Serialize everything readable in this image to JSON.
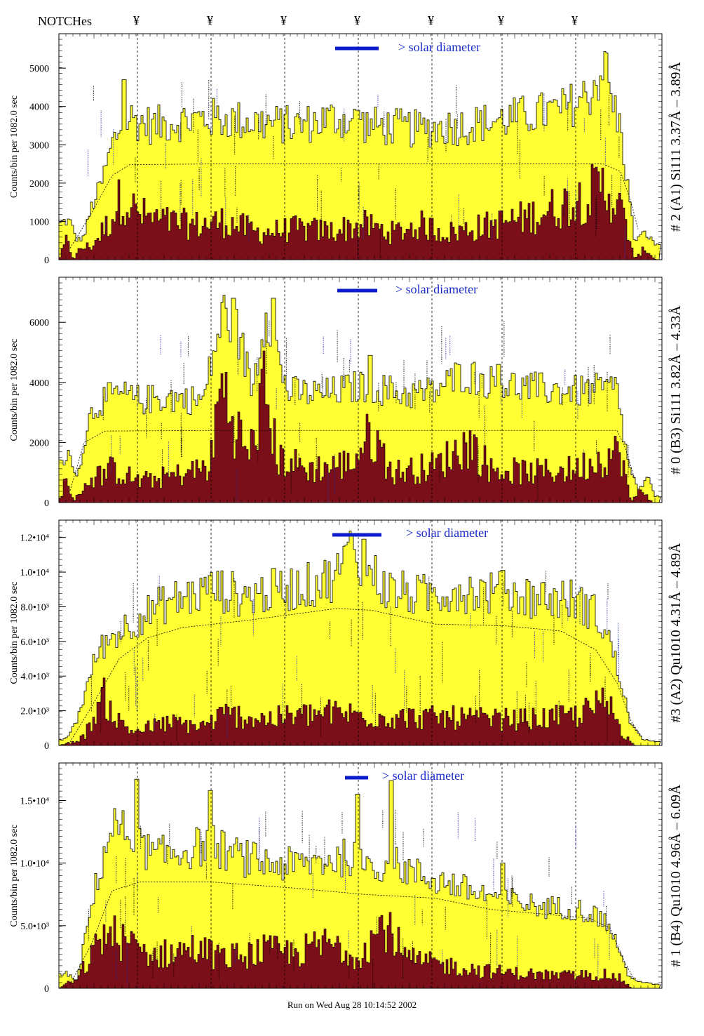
{
  "header": {
    "notch_label": "NOTCHes",
    "notch_symbol": "¥",
    "notch_positions_x": [
      196,
      301,
      406,
      511,
      616,
      716,
      821
    ]
  },
  "footer": {
    "run_text": "Run on Wed Aug 28 10:14:52 2002"
  },
  "colors": {
    "fill_total": "#ffff33",
    "fill_lower": "#7a0f1a",
    "legend_bar": "#0a1ccc",
    "legend_text": "#1b2bcc",
    "annotation_blue": "#2233aa",
    "annotation_dark": "#000000"
  },
  "chart_data": [
    {
      "type": "area",
      "title": "# 2 (A1) Si111  3.37Å – 3.89Å",
      "ylabel": "Counts/bin per   1082.0 sec",
      "legend_text": "> solar diameter",
      "yticks": [
        "0",
        "1000",
        "2000",
        "3000",
        "4000",
        "5000"
      ],
      "ylim": [
        0,
        5900
      ],
      "x_range": [
        84,
        940
      ],
      "notch_x": [
        196,
        301,
        406,
        511,
        616,
        716,
        821
      ],
      "upper_env": [
        [
          84,
          900
        ],
        [
          90,
          1000
        ],
        [
          100,
          1000
        ],
        [
          110,
          500
        ],
        [
          120,
          600
        ],
        [
          130,
          1350
        ],
        [
          145,
          2000
        ],
        [
          160,
          3000
        ],
        [
          170,
          3400
        ],
        [
          185,
          3700
        ],
        [
          200,
          3600
        ],
        [
          220,
          3500
        ],
        [
          250,
          3600
        ],
        [
          300,
          3700
        ],
        [
          360,
          3600
        ],
        [
          420,
          3500
        ],
        [
          480,
          3700
        ],
        [
          530,
          3500
        ],
        [
          600,
          3400
        ],
        [
          660,
          3500
        ],
        [
          700,
          3600
        ],
        [
          760,
          3800
        ],
        [
          800,
          3900
        ],
        [
          840,
          4300
        ],
        [
          860,
          5000
        ],
        [
          885,
          3400
        ],
        [
          895,
          2000
        ],
        [
          905,
          500
        ],
        [
          920,
          700
        ],
        [
          935,
          400
        ]
      ],
      "lower_env": [
        [
          84,
          0
        ],
        [
          95,
          500
        ],
        [
          105,
          0
        ],
        [
          115,
          300
        ],
        [
          130,
          350
        ],
        [
          155,
          950
        ],
        [
          175,
          1700
        ],
        [
          195,
          1200
        ],
        [
          230,
          1000
        ],
        [
          280,
          900
        ],
        [
          320,
          1000
        ],
        [
          370,
          700
        ],
        [
          420,
          800
        ],
        [
          470,
          750
        ],
        [
          520,
          900
        ],
        [
          560,
          700
        ],
        [
          600,
          900
        ],
        [
          640,
          700
        ],
        [
          700,
          900
        ],
        [
          750,
          1100
        ],
        [
          800,
          1400
        ],
        [
          840,
          1700
        ],
        [
          860,
          1900
        ],
        [
          880,
          1500
        ],
        [
          895,
          800
        ],
        [
          905,
          0
        ],
        [
          920,
          300
        ],
        [
          935,
          0
        ]
      ],
      "dashed_curve": [
        [
          100,
          300
        ],
        [
          130,
          1200
        ],
        [
          160,
          2200
        ],
        [
          185,
          2480
        ],
        [
          300,
          2500
        ],
        [
          500,
          2500
        ],
        [
          700,
          2500
        ],
        [
          860,
          2500
        ],
        [
          885,
          2300
        ],
        [
          900,
          1500
        ],
        [
          910,
          800
        ]
      ],
      "vertical_spikes": [
        [
          175,
          4700
        ],
        [
          508,
          3900
        ],
        [
          829,
          4100
        ],
        [
          862,
          5400
        ],
        [
          406,
          3800
        ]
      ]
    },
    {
      "type": "area",
      "title": "# 0 (B3) Si111  3.82Å – 4.33Å",
      "ylabel": "Counts/bin per   1082.0 sec",
      "legend_text": "> solar diameter",
      "yticks": [
        "0",
        "2000",
        "4000",
        "6000"
      ],
      "ylim": [
        0,
        7500
      ],
      "x_range": [
        84,
        940
      ],
      "notch_x": [
        196,
        301,
        406,
        511,
        616,
        716,
        821
      ],
      "upper_env": [
        [
          84,
          1500
        ],
        [
          92,
          1200
        ],
        [
          100,
          1700
        ],
        [
          110,
          800
        ],
        [
          120,
          2000
        ],
        [
          130,
          3000
        ],
        [
          145,
          3400
        ],
        [
          170,
          3600
        ],
        [
          200,
          3400
        ],
        [
          240,
          3500
        ],
        [
          290,
          3400
        ],
        [
          305,
          5000
        ],
        [
          320,
          6400
        ],
        [
          340,
          5600
        ],
        [
          360,
          3800
        ],
        [
          380,
          6500
        ],
        [
          395,
          5000
        ],
        [
          410,
          3700
        ],
        [
          460,
          3600
        ],
        [
          520,
          3900
        ],
        [
          580,
          3600
        ],
        [
          620,
          3700
        ],
        [
          660,
          4300
        ],
        [
          700,
          4000
        ],
        [
          760,
          3800
        ],
        [
          820,
          3700
        ],
        [
          880,
          3800
        ],
        [
          895,
          1400
        ],
        [
          910,
          400
        ],
        [
          925,
          800
        ],
        [
          935,
          200
        ]
      ],
      "lower_env": [
        [
          84,
          0
        ],
        [
          95,
          900
        ],
        [
          105,
          0
        ],
        [
          120,
          600
        ],
        [
          140,
          900
        ],
        [
          160,
          1100
        ],
        [
          200,
          700
        ],
        [
          250,
          900
        ],
        [
          300,
          1200
        ],
        [
          315,
          4000
        ],
        [
          335,
          2600
        ],
        [
          355,
          1500
        ],
        [
          378,
          3800
        ],
        [
          395,
          1500
        ],
        [
          440,
          1100
        ],
        [
          500,
          1300
        ],
        [
          530,
          2300
        ],
        [
          560,
          1000
        ],
        [
          620,
          1200
        ],
        [
          670,
          2000
        ],
        [
          700,
          1100
        ],
        [
          760,
          1000
        ],
        [
          820,
          1100
        ],
        [
          860,
          1500
        ],
        [
          885,
          1700
        ],
        [
          900,
          0
        ],
        [
          915,
          500
        ],
        [
          930,
          0
        ]
      ],
      "dashed_curve": [
        [
          100,
          400
        ],
        [
          120,
          2000
        ],
        [
          150,
          2380
        ],
        [
          300,
          2400
        ],
        [
          500,
          2400
        ],
        [
          700,
          2400
        ],
        [
          880,
          2400
        ],
        [
          892,
          1800
        ],
        [
          905,
          800
        ]
      ],
      "vertical_spikes": [
        [
          332,
          6800
        ],
        [
          388,
          6800
        ],
        [
          526,
          4900
        ],
        [
          709,
          4600
        ]
      ]
    },
    {
      "type": "area",
      "title": "#3 (A2) Qu1010  4.31Å – 4.89Å",
      "ylabel": "Counts/bin per   1082.0 sec",
      "legend_text": "> solar diameter",
      "yticks": [
        "0",
        "2.0•10³",
        "4.0•10³",
        "6.0•10³",
        "8.0•10³",
        "1.0•10⁴",
        "1.2•10⁴"
      ],
      "ylim": [
        0,
        13000
      ],
      "x_range": [
        84,
        940
      ],
      "notch_x": [
        196,
        301,
        406,
        511,
        616,
        716,
        821
      ],
      "upper_env": [
        [
          84,
          300
        ],
        [
          95,
          400
        ],
        [
          110,
          1500
        ],
        [
          125,
          3500
        ],
        [
          140,
          5500
        ],
        [
          170,
          6600
        ],
        [
          200,
          7400
        ],
        [
          240,
          8300
        ],
        [
          280,
          8700
        ],
        [
          310,
          9000
        ],
        [
          350,
          8600
        ],
        [
          400,
          9000
        ],
        [
          440,
          9200
        ],
        [
          480,
          9800
        ],
        [
          500,
          11300
        ],
        [
          520,
          10600
        ],
        [
          550,
          9000
        ],
        [
          600,
          8600
        ],
        [
          650,
          9000
        ],
        [
          700,
          8800
        ],
        [
          740,
          8700
        ],
        [
          780,
          8500
        ],
        [
          820,
          8400
        ],
        [
          850,
          7600
        ],
        [
          870,
          6000
        ],
        [
          885,
          3700
        ],
        [
          900,
          1200
        ],
        [
          915,
          400
        ],
        [
          935,
          200
        ]
      ],
      "lower_env": [
        [
          84,
          0
        ],
        [
          105,
          200
        ],
        [
          120,
          500
        ],
        [
          140,
          2200
        ],
        [
          150,
          2800
        ],
        [
          165,
          1500
        ],
        [
          190,
          800
        ],
        [
          240,
          1300
        ],
        [
          290,
          1100
        ],
        [
          320,
          1800
        ],
        [
          380,
          1500
        ],
        [
          420,
          1700
        ],
        [
          480,
          1900
        ],
        [
          520,
          1700
        ],
        [
          580,
          1600
        ],
        [
          640,
          1600
        ],
        [
          700,
          1500
        ],
        [
          760,
          1500
        ],
        [
          820,
          1700
        ],
        [
          860,
          2400
        ],
        [
          875,
          2000
        ],
        [
          890,
          600
        ],
        [
          905,
          0
        ]
      ],
      "dashed_curve": [
        [
          100,
          200
        ],
        [
          130,
          2200
        ],
        [
          170,
          5000
        ],
        [
          210,
          6200
        ],
        [
          260,
          6800
        ],
        [
          350,
          7200
        ],
        [
          480,
          7900
        ],
        [
          530,
          7800
        ],
        [
          620,
          7000
        ],
        [
          720,
          6900
        ],
        [
          800,
          6600
        ],
        [
          850,
          5500
        ],
        [
          880,
          3600
        ],
        [
          900,
          1400
        ],
        [
          915,
          500
        ]
      ],
      "vertical_spikes": [
        [
          297,
          9800
        ],
        [
          499,
          12200
        ],
        [
          517,
          11900
        ],
        [
          715,
          10100
        ]
      ]
    },
    {
      "type": "area",
      "title": "# 1 (B4) Qu1010 4.96Å – 6.09Å",
      "ylabel": "Counts/bin per   1082.0 sec",
      "legend_text": "> solar diameter",
      "yticks": [
        "0",
        "5.0•10³",
        "1.0•10⁴",
        "1.5•10⁴"
      ],
      "ylim": [
        0,
        18000
      ],
      "x_range": [
        84,
        940
      ],
      "notch_x": [
        196,
        301,
        406,
        511,
        616,
        716,
        821
      ],
      "upper_env": [
        [
          84,
          1000
        ],
        [
          95,
          1200
        ],
        [
          110,
          600
        ],
        [
          125,
          5000
        ],
        [
          140,
          9000
        ],
        [
          160,
          13000
        ],
        [
          190,
          12000
        ],
        [
          220,
          10500
        ],
        [
          260,
          11000
        ],
        [
          300,
          11500
        ],
        [
          340,
          10500
        ],
        [
          380,
          10000
        ],
        [
          420,
          9800
        ],
        [
          460,
          10200
        ],
        [
          500,
          10500
        ],
        [
          520,
          9600
        ],
        [
          560,
          10000
        ],
        [
          600,
          9000
        ],
        [
          640,
          8400
        ],
        [
          680,
          7600
        ],
        [
          720,
          7200
        ],
        [
          770,
          6500
        ],
        [
          820,
          6400
        ],
        [
          860,
          5600
        ],
        [
          880,
          3700
        ],
        [
          895,
          1000
        ],
        [
          915,
          500
        ],
        [
          935,
          300
        ]
      ],
      "lower_env": [
        [
          84,
          0
        ],
        [
          110,
          800
        ],
        [
          130,
          2500
        ],
        [
          150,
          4500
        ],
        [
          180,
          3600
        ],
        [
          220,
          2600
        ],
        [
          280,
          3200
        ],
        [
          320,
          2400
        ],
        [
          380,
          3000
        ],
        [
          420,
          2800
        ],
        [
          470,
          3600
        ],
        [
          510,
          2600
        ],
        [
          550,
          5200
        ],
        [
          580,
          2300
        ],
        [
          630,
          1900
        ],
        [
          690,
          1400
        ],
        [
          740,
          1200
        ],
        [
          800,
          1000
        ],
        [
          860,
          1100
        ],
        [
          885,
          800
        ],
        [
          900,
          0
        ]
      ],
      "dashed_curve": [
        [
          100,
          300
        ],
        [
          130,
          3500
        ],
        [
          160,
          7800
        ],
        [
          200,
          8500
        ],
        [
          300,
          8500
        ],
        [
          420,
          8000
        ],
        [
          520,
          7500
        ],
        [
          620,
          7200
        ],
        [
          700,
          6300
        ],
        [
          780,
          5900
        ],
        [
          840,
          5600
        ],
        [
          870,
          4800
        ],
        [
          890,
          2200
        ],
        [
          905,
          600
        ]
      ],
      "vertical_spikes": [
        [
          193,
          16700
        ],
        [
          299,
          15800
        ],
        [
          508,
          15500
        ],
        [
          557,
          16600
        ],
        [
          715,
          10000
        ],
        [
          522,
          10500
        ]
      ]
    }
  ]
}
